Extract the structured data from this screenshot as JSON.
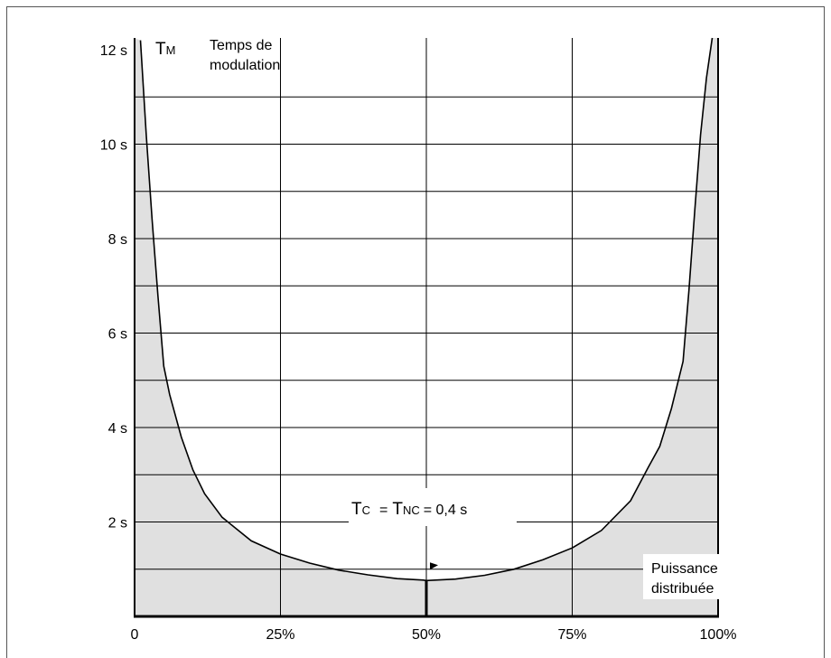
{
  "chart_data": {
    "type": "area",
    "title": "",
    "ylabel_symbol": "T",
    "ylabel_symbol_sub": "M",
    "ylabel_line1": "Temps de",
    "ylabel_line2": "modulation",
    "xlabel_line1": "Puissance",
    "xlabel_line2": "distribuée",
    "xlim": [
      0,
      100
    ],
    "ylim": [
      0,
      12.25
    ],
    "x_ticks": [
      {
        "value": 0,
        "label": "0"
      },
      {
        "value": 25,
        "label": "25%"
      },
      {
        "value": 50,
        "label": "50%"
      },
      {
        "value": 75,
        "label": "75%"
      },
      {
        "value": 100,
        "label": "100%"
      }
    ],
    "y_ticks": [
      {
        "value": 2,
        "label": "2 s"
      },
      {
        "value": 4,
        "label": "4 s"
      },
      {
        "value": 6,
        "label": "6 s"
      },
      {
        "value": 8,
        "label": "8 s"
      },
      {
        "value": 10,
        "label": "10 s"
      },
      {
        "value": 12,
        "label": "12 s"
      }
    ],
    "grid": true,
    "series": [
      {
        "x": [
          1,
          2,
          3,
          4,
          5,
          6,
          8,
          10,
          12,
          15,
          20,
          25,
          30,
          35,
          40,
          45,
          49.5,
          50,
          55,
          60,
          65,
          70,
          75,
          80,
          85,
          88,
          90,
          92,
          94,
          95,
          96,
          97,
          98,
          99
        ],
        "y": [
          12.2,
          10.2,
          8.4,
          6.8,
          5.3,
          4.7,
          3.8,
          3.1,
          2.6,
          2.1,
          1.6,
          1.32,
          1.13,
          0.98,
          0.88,
          0.8,
          0.77,
          0.76,
          0.79,
          0.87,
          1.0,
          1.2,
          1.45,
          1.82,
          2.45,
          3.15,
          3.6,
          4.4,
          5.4,
          6.9,
          8.6,
          10.2,
          11.4,
          12.25
        ],
        "fill": "#e0e0e0",
        "line_color": "#000000"
      }
    ],
    "annotation": {
      "tc_symbol": "T",
      "tc_sub": "C",
      "eq1": "=",
      "tnc_symbol": "T",
      "tnc_sub": "NC",
      "eq2": "= 0,4 s",
      "marker_x": 50
    }
  }
}
